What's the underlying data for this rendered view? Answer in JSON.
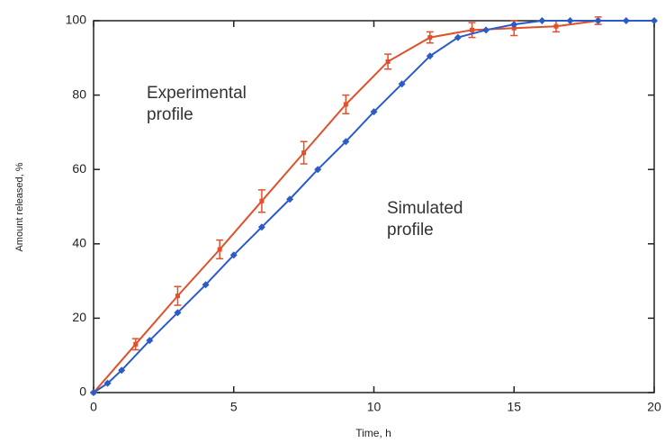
{
  "chart_data": {
    "type": "line",
    "x_label": "Time, h",
    "y_label": "Amount released, %",
    "annotations": [
      "Experimental profile",
      "Simulated profile"
    ],
    "xlim": [
      0,
      20
    ],
    "xticks": [
      0,
      5,
      10,
      15,
      20
    ],
    "ylim": [
      0,
      100
    ],
    "yticks": [
      0,
      20,
      40,
      60,
      80,
      100
    ],
    "series": [
      {
        "color": "#e0502a",
        "marker": "bar",
        "x": [
          0,
          1.5,
          3,
          4.5,
          6,
          7.5,
          9,
          10.5,
          12,
          13.5,
          15,
          16.5,
          18
        ],
        "values": [
          0,
          13,
          26,
          38.5,
          51.5,
          64.5,
          77.5,
          89,
          95.5,
          97.5,
          98,
          98.5,
          100
        ],
        "errors": [
          0,
          1.5,
          2.5,
          2.5,
          3,
          3,
          2.5,
          2,
          1.5,
          2,
          2,
          1.5,
          1
        ]
      },
      {
        "color": "#2a5cc8",
        "marker": "diamond",
        "x": [
          0,
          0.5,
          1,
          2,
          3,
          4,
          5,
          6,
          7,
          8,
          9,
          10,
          11,
          12,
          13,
          14,
          15,
          16,
          17,
          18,
          19,
          20
        ],
        "values": [
          0,
          2.5,
          6,
          14,
          21.5,
          29,
          37,
          44.5,
          52,
          60,
          67.5,
          75.5,
          83,
          90.5,
          95.5,
          97.5,
          99,
          100,
          100,
          100,
          100,
          100
        ]
      }
    ]
  }
}
